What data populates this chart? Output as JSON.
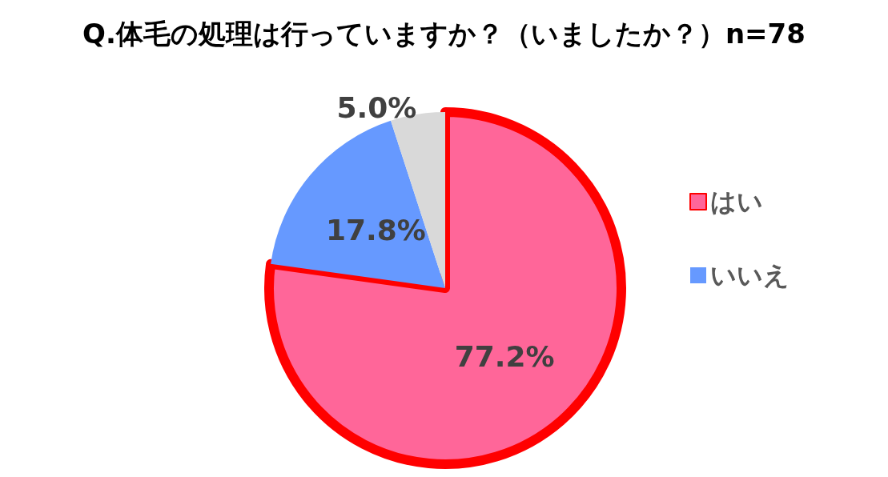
{
  "chart_data": {
    "type": "pie",
    "title": "Q.体毛の処理は行っていますか？（いましたか？）n=78",
    "categories": [
      "はい",
      "いいえ",
      null
    ],
    "values": [
      77.2,
      17.8,
      5.0
    ],
    "colors": [
      "#ff6699",
      "#6699ff",
      "#d9d9d9"
    ],
    "value_labels": [
      "77.2%",
      "17.8%",
      "5.0%"
    ],
    "legend": "right"
  }
}
